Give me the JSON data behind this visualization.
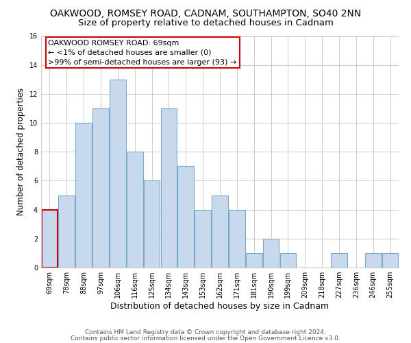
{
  "title": "OAKWOOD, ROMSEY ROAD, CADNAM, SOUTHAMPTON, SO40 2NN",
  "subtitle": "Size of property relative to detached houses in Cadnam",
  "xlabel": "Distribution of detached houses by size in Cadnam",
  "ylabel": "Number of detached properties",
  "bar_labels": [
    "69sqm",
    "78sqm",
    "88sqm",
    "97sqm",
    "106sqm",
    "116sqm",
    "125sqm",
    "134sqm",
    "143sqm",
    "153sqm",
    "162sqm",
    "171sqm",
    "181sqm",
    "190sqm",
    "199sqm",
    "209sqm",
    "218sqm",
    "227sqm",
    "236sqm",
    "246sqm",
    "255sqm"
  ],
  "bar_values": [
    4,
    5,
    10,
    11,
    13,
    8,
    6,
    11,
    7,
    4,
    5,
    4,
    1,
    2,
    1,
    0,
    0,
    1,
    0,
    1,
    1
  ],
  "bar_color": "#c8d8ed",
  "bar_edge_color": "#7aaac8",
  "highlight_index": 0,
  "highlight_bar_edge_color": "#cc0000",
  "ylim": [
    0,
    16
  ],
  "yticks": [
    0,
    2,
    4,
    6,
    8,
    10,
    12,
    14,
    16
  ],
  "annotation_title": "OAKWOOD ROMSEY ROAD: 69sqm",
  "annotation_line1": "← <1% of detached houses are smaller (0)",
  "annotation_line2": ">99% of semi-detached houses are larger (93) →",
  "annotation_box_color": "#ffffff",
  "annotation_box_edge": "#cc0000",
  "footer1": "Contains HM Land Registry data © Crown copyright and database right 2024.",
  "footer2": "Contains public sector information licensed under the Open Government Licence v3.0.",
  "background_color": "#ffffff",
  "grid_color": "#cccccc",
  "title_fontsize": 10,
  "subtitle_fontsize": 9.5,
  "xlabel_fontsize": 9,
  "ylabel_fontsize": 8.5,
  "tick_fontsize": 7,
  "annotation_fontsize": 8,
  "footer_fontsize": 6.5
}
